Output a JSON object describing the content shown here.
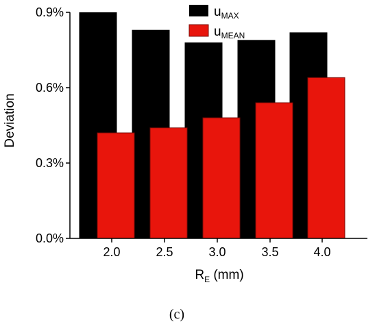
{
  "chart_data": {
    "type": "bar",
    "categories": [
      "2.0",
      "2.5",
      "3.0",
      "3.5",
      "4.0"
    ],
    "series": [
      {
        "name_base": "u",
        "name_sub": "MAX",
        "color": "#000000",
        "values": [
          0.9,
          0.83,
          0.78,
          0.79,
          0.82
        ]
      },
      {
        "name_base": "u",
        "name_sub": "MEAN",
        "color": "#e8150c",
        "values": [
          0.42,
          0.44,
          0.48,
          0.54,
          0.64
        ]
      }
    ],
    "ylim": [
      0.0,
      0.9
    ],
    "yticks": [
      0.0,
      0.3,
      0.6,
      0.9
    ],
    "ytick_labels": [
      "0.0%",
      "0.3%",
      "0.6%",
      "0.9%"
    ],
    "ylabel": "Deviation",
    "xlabel_base": "R",
    "xlabel_sub": "E",
    "xlabel_suffix": " (mm)",
    "legend_position": "top-center",
    "grid": false
  },
  "caption": "(c)"
}
